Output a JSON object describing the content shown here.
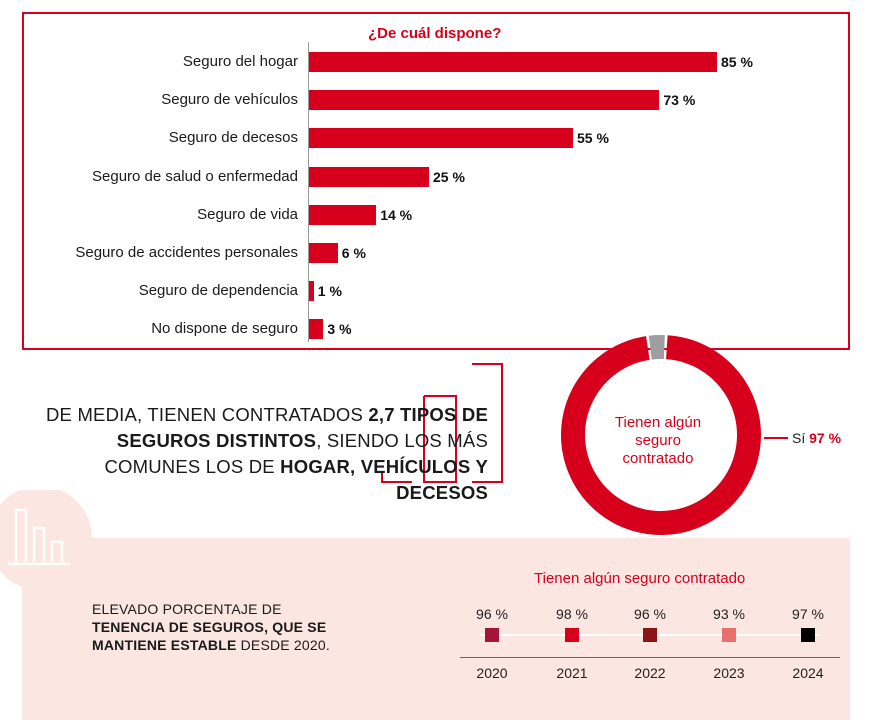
{
  "chart_data": [
    {
      "type": "bar",
      "title": "¿De cuál dispone?",
      "categories": [
        "Seguro del hogar",
        "Seguro de vehículos",
        "Seguro de decesos",
        "Seguro de salud o enfermedad",
        "Seguro de vida",
        "Seguro de accidentes personales",
        "Seguro de dependencia",
        "No dispone de seguro"
      ],
      "values": [
        85,
        73,
        55,
        25,
        14,
        6,
        1,
        3
      ],
      "value_labels": [
        "85 %",
        "73 %",
        "55 %",
        "25 %",
        "14 %",
        "6 %",
        "1 %",
        "3 %"
      ],
      "orientation": "horizontal",
      "color": "#d6001c"
    },
    {
      "type": "pie",
      "donut": true,
      "center_label": "Tienen algún seguro contratado",
      "slices": [
        {
          "name": "Sí",
          "value": 97,
          "label": "97 %",
          "color": "#d6001c"
        },
        {
          "value": 3,
          "color": "#9e9e9e"
        }
      ]
    },
    {
      "type": "scatter",
      "title": "Tienen algún seguro contratado",
      "x": [
        "2020",
        "2021",
        "2022",
        "2023",
        "2024"
      ],
      "values": [
        96,
        98,
        96,
        93,
        97
      ],
      "value_labels": [
        "96 %",
        "98 %",
        "96 %",
        "93 %",
        "97 %"
      ],
      "colors": [
        "#a3163a",
        "#d6001c",
        "#8b1515",
        "#e8706a",
        "#000000"
      ]
    }
  ],
  "text": {
    "middle": {
      "p1": "DE MEDIA, TIENEN CONTRATADOS ",
      "b1": "2,7 TIPOS DE SEGUROS DISTINTOS",
      "p2": ", SIENDO LOS MÁS COMUNES LOS DE ",
      "b2": "HOGAR, VEHÍCULOS Y DECESOS"
    },
    "bottom": {
      "p1": "ELEVADO PORCENTAJE DE ",
      "b1": "TENENCIA DE SEGUROS, QUE SE MANTIENE ESTABLE",
      "p2": " DESDE 2020."
    }
  },
  "colors": {
    "accent": "#d6001c",
    "band": "#fbe6e1"
  }
}
